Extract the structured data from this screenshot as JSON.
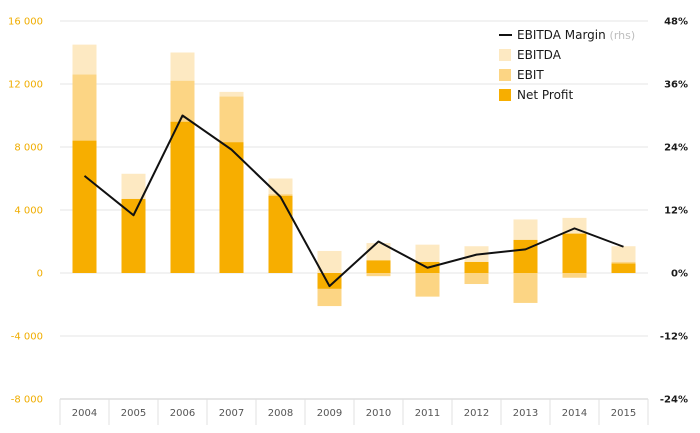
{
  "chart_data": {
    "type": "bar",
    "categories": [
      "2004",
      "2005",
      "2006",
      "2007",
      "2008",
      "2009",
      "2010",
      "2011",
      "2012",
      "2013",
      "2014",
      "2015"
    ],
    "series": [
      {
        "name": "EBITDA",
        "values": [
          14500,
          6300,
          14000,
          11500,
          6000,
          1400,
          1900,
          1800,
          1700,
          3400,
          3500,
          1700
        ],
        "color": "#fde9c2"
      },
      {
        "name": "EBIT",
        "values": [
          12600,
          4700,
          12200,
          11200,
          5000,
          -2100,
          -200,
          -1500,
          -700,
          -1900,
          -300,
          700
        ],
        "color": "#fcd584"
      },
      {
        "name": "Net Profit",
        "values": [
          8400,
          4700,
          9600,
          8300,
          4900,
          -1000,
          800,
          700,
          700,
          2100,
          2500,
          600
        ],
        "color": "#f7ae00"
      }
    ],
    "line_series": {
      "name": "EBITDA Margin",
      "legend_note": "(rhs)",
      "axis": "right",
      "values": [
        18.5,
        11,
        30,
        23.5,
        14.5,
        -2.5,
        6,
        1,
        3.5,
        4.5,
        8.5,
        5
      ],
      "color": "#111111"
    },
    "y_left": {
      "ylim": [
        -8000,
        16000
      ],
      "ticks": [
        16000,
        12000,
        8000,
        4000,
        0,
        -4000,
        -8000
      ],
      "tick_labels": [
        "16 000",
        "12 000",
        "8 000",
        "4 000",
        "0",
        "-4 000",
        "-8 000"
      ]
    },
    "y_right": {
      "ylim": [
        -24,
        48
      ],
      "ticks": [
        48,
        36,
        24,
        12,
        0,
        -12,
        -24
      ],
      "tick_labels": [
        "48%",
        "36%",
        "24%",
        "12%",
        "0%",
        "-12%",
        "-24%"
      ]
    },
    "grid": true,
    "legend_position": "top-right",
    "colors": {
      "left_axis": "#f0ad00",
      "grid": "#e6e6e6"
    }
  }
}
